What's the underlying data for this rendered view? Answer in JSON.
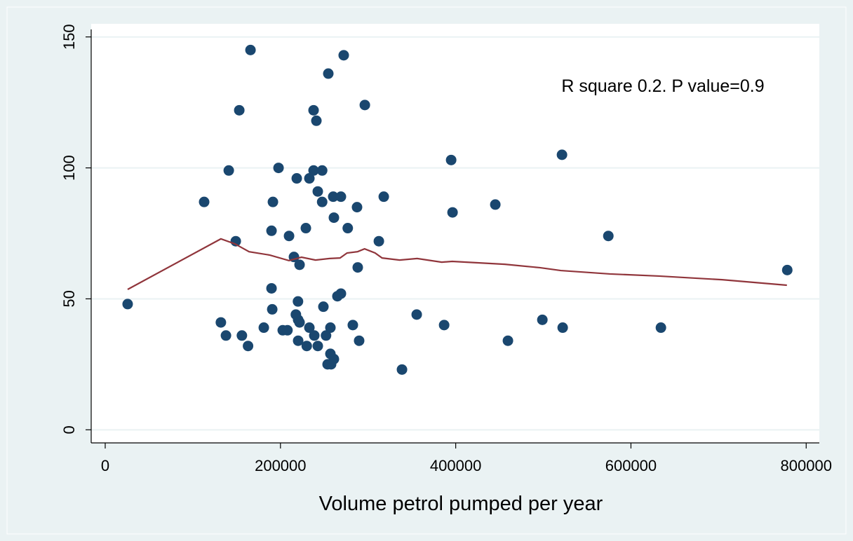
{
  "chart_data": {
    "type": "scatter",
    "x_label": "Volume petrol pumped per year",
    "annotation": "R square 0.2. P value=0.9",
    "xlim": [
      -16000,
      815000
    ],
    "ylim": [
      -5,
      155
    ],
    "xticks": [
      0,
      200000,
      400000,
      600000,
      800000
    ],
    "yticks": [
      0,
      50,
      100,
      150
    ],
    "grid": true,
    "series": [
      {
        "kind": "markers",
        "color": "#1a476f",
        "x": [
          25600,
          112900,
          165800,
          153000,
          141000,
          149000,
          132000,
          137800,
          156000,
          163000,
          181000,
          189800,
          190600,
          189800,
          191400,
          197800,
          202600,
          208000,
          209800,
          215400,
          217600,
          220000,
          218600,
          220200,
          220200,
          221800,
          221800,
          229000,
          230000,
          233000,
          233000,
          237800,
          238600,
          237800,
          241000,
          242600,
          242600,
          247600,
          247600,
          249000,
          252000,
          253800,
          254600,
          257000,
          257800,
          257000,
          260200,
          261000,
          261000,
          265000,
          269000,
          269000,
          272200,
          276800,
          282600,
          287400,
          288200,
          289800,
          296300,
          312300,
          317900,
          338700,
          355500,
          386800,
          394800,
          396400,
          445200,
          459600,
          498900,
          521300,
          522100,
          574200,
          634200,
          778400
        ],
        "values": [
          48,
          87,
          145,
          122,
          99,
          72,
          41,
          36,
          36,
          32,
          39,
          54,
          46,
          76,
          87,
          100,
          38,
          38,
          74,
          66,
          44,
          49,
          96,
          34,
          42,
          41,
          63,
          77,
          32,
          96,
          39,
          122,
          36,
          99,
          118,
          32,
          91,
          99,
          87,
          47,
          36,
          25,
          136,
          29,
          25,
          39,
          89,
          27,
          81,
          51,
          89,
          52,
          143,
          77,
          40,
          85,
          62,
          34,
          124,
          72,
          89,
          23,
          44,
          40,
          103,
          83,
          86,
          34,
          42,
          105,
          39,
          74,
          39,
          61
        ]
      },
      {
        "kind": "line",
        "color": "#90353b",
        "x": [
          25600,
          132000,
          148000,
          164200,
          188000,
          209800,
          224000,
          240000,
          256000,
          268000,
          276000,
          288000,
          296000,
          308000,
          316000,
          336000,
          356000,
          384000,
          396000,
          456000,
          496000,
          520000,
          576000,
          632000,
          704000,
          778000
        ],
        "values": [
          53.6,
          72.9,
          71,
          68,
          66.7,
          64.6,
          65.9,
          64.8,
          65.4,
          65.6,
          67.5,
          68,
          69.1,
          67.5,
          65.6,
          64.8,
          65.4,
          64,
          64.3,
          63.2,
          61.9,
          60.8,
          59.5,
          58.7,
          57.3,
          55.2
        ]
      }
    ]
  }
}
